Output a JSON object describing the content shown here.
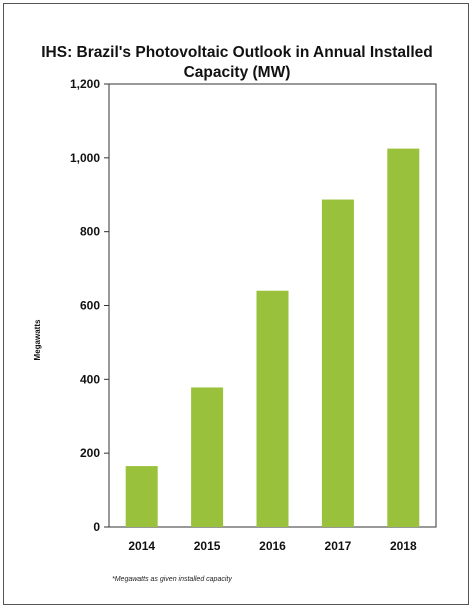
{
  "chart_data": {
    "type": "bar",
    "title_line1": "IHS: Brazil's Photovoltaic Outlook in Annual Installed",
    "title_line2": "Capacity (MW)",
    "ylabel": "Megawatts",
    "categories": [
      "2014",
      "2015",
      "2016",
      "2017",
      "2018"
    ],
    "values": [
      165,
      378,
      640,
      887,
      1025
    ],
    "ylim": [
      0,
      1200
    ],
    "yticks": [
      0,
      200,
      400,
      600,
      800,
      1000,
      1200
    ],
    "ytick_labels": [
      "0",
      "200",
      "400",
      "600",
      "800",
      "1,000",
      "1,200"
    ],
    "bar_color": "#99c13b",
    "grid": false,
    "legend": "none",
    "footnote": "*Megawatts as given installed capacity"
  }
}
